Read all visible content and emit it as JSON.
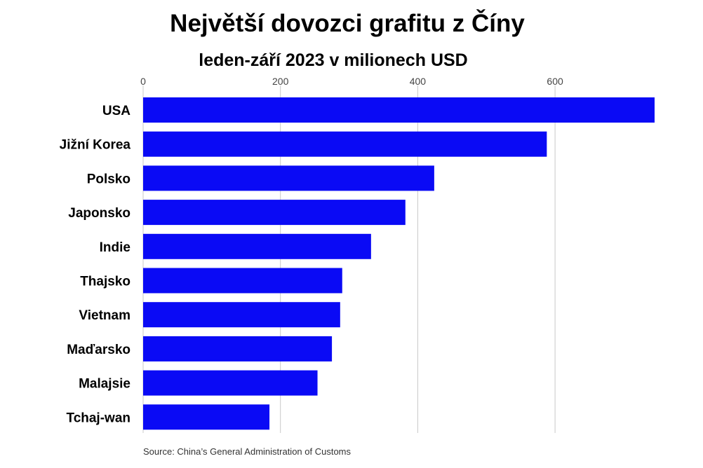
{
  "chart_data": {
    "type": "bar",
    "orientation": "horizontal",
    "title": "Největší dovozci grafitu z Číny",
    "subtitle": "leden-září 2023 v milionech USD",
    "categories": [
      "USA",
      "Jižní Korea",
      "Polsko",
      "Japonsko",
      "Indie",
      "Thajsko",
      "Vietnam",
      "Maďarsko",
      "Malajsie",
      "Tchaj-wan"
    ],
    "values": [
      745,
      588,
      424,
      382,
      332,
      290,
      287,
      275,
      254,
      184
    ],
    "xlim": [
      0,
      745
    ],
    "xticks": [
      0,
      200,
      400,
      600
    ],
    "grid": true,
    "bar_color": "#0a0af5",
    "grid_color": "#c8c8c8",
    "source": "Source: China’s General Administration of Customs"
  }
}
